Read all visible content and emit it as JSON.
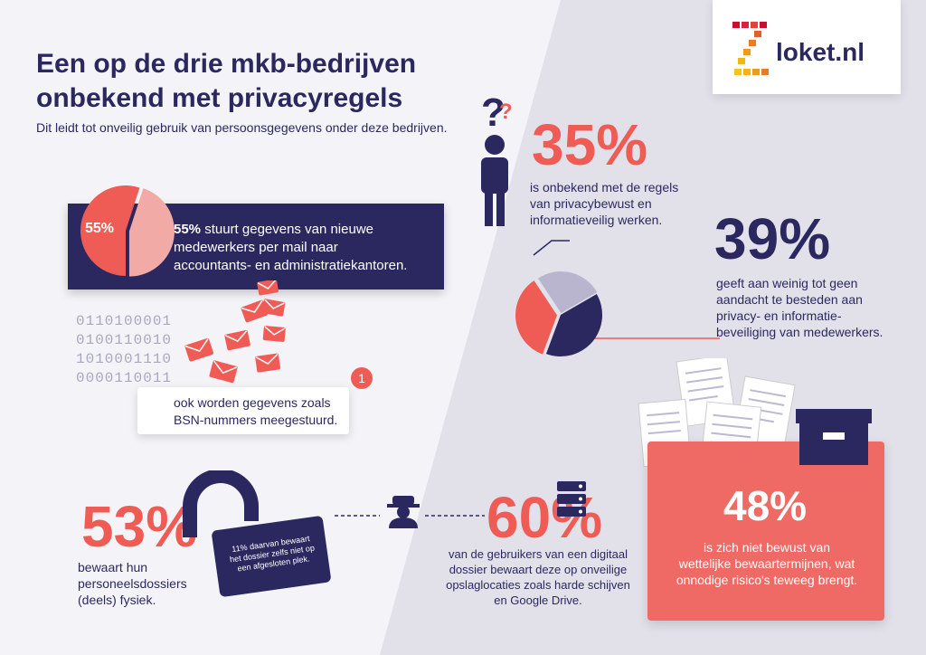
{
  "title_line1": "Een op de drie mkb-bedrijven",
  "title_line2": "onbekend met privacyregels",
  "subtitle": "Dit leidt tot onveilig gebruik van persoonsgegevens onder deze bedrijven.",
  "logo": {
    "text": "loket.nl",
    "icon": "z-mosaic-logo"
  },
  "stat35": {
    "value": "35%",
    "line1": "is onbekend met de regels",
    "line2": "van privacybewust en",
    "line3": "informatieveilig werken."
  },
  "stat39": {
    "value": "39%",
    "line1": "geeft aan weinig tot geen",
    "line2": "aandacht te besteden aan",
    "line3": "privacy- en informatie-",
    "line4": "beveiliging van medewerkers."
  },
  "stat55": {
    "pie_label": "55%",
    "bold": "55%",
    "line1": " stuurt gegevens van nieuwe",
    "line2": "medewerkers per mail naar",
    "line3": "accountants- en administratiekantoren."
  },
  "binary": [
    "0110100001",
    "0100110010",
    "1010001110",
    "0000110011"
  ],
  "callout": {
    "badge": "1",
    "line1": "ook worden gegevens zoals",
    "line2": "BSN-nummers meegestuurd."
  },
  "stat53": {
    "value": "53%",
    "line1": "bewaart hun",
    "line2": "personeelsdossiers",
    "line3": "(deels) fysiek."
  },
  "lock_note": {
    "line1": "11% daarvan bewaart",
    "line2": "het dossier zelfs niet op",
    "line3": "een afgesloten plek."
  },
  "stat60": {
    "value": "60%",
    "line1": "van de gebruikers van een digitaal",
    "line2": "dossier bewaart deze op onveilige",
    "line3": "opslaglocaties zoals harde schijven",
    "line4": "en Google Drive."
  },
  "stat48": {
    "value": "48%",
    "line1": "is zich niet bewust van",
    "line2": "wettelijke bewaartermijnen, wat",
    "line3": "onnodige risico's teweeg brengt."
  },
  "colors": {
    "navy": "#2b2860",
    "coral": "#ef5b55",
    "light_bg": "#ecebf2",
    "pale_purple": "#b9b5cf"
  },
  "pie_charts": [
    {
      "name": "pie-55",
      "slices": [
        55,
        45
      ]
    },
    {
      "name": "pie-39",
      "slices": [
        39,
        35,
        26
      ]
    }
  ],
  "icons": [
    "question-mark-icon",
    "person-icon",
    "envelope-icon",
    "padlock-icon",
    "spy-icon",
    "server-icon",
    "documents-icon",
    "archive-box-icon"
  ]
}
